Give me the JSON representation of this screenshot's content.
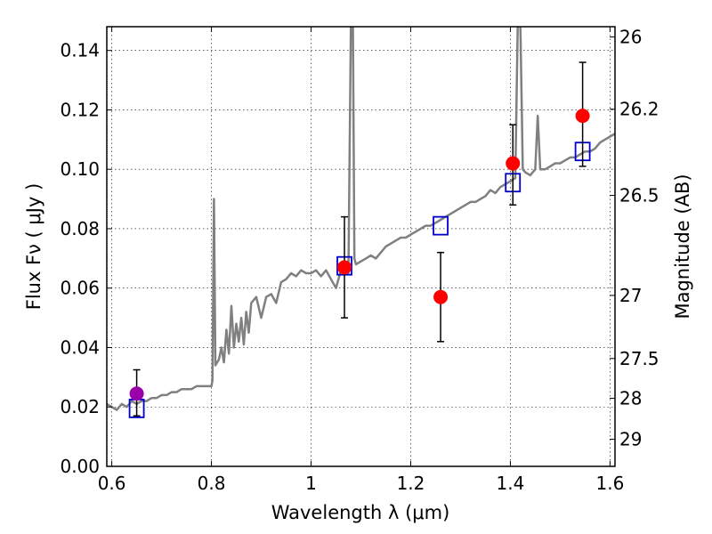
{
  "chart_data": {
    "type": "scatter",
    "title": "",
    "xlabel": "Wavelength  λ (μm)",
    "ylabel": "Flux  Fν  ( μJy )",
    "ylabel_right": "Magnitude (AB)",
    "xlim": [
      0.59,
      1.61
    ],
    "ylim": [
      0.0,
      0.148
    ],
    "grid": true,
    "x_ticks": [
      0.6,
      0.8,
      1.0,
      1.2,
      1.4,
      1.6
    ],
    "x_tick_labels": [
      "0.6",
      "0.8",
      "1",
      "1.2",
      "1.4",
      "1.6"
    ],
    "y_ticks": [
      0.0,
      0.02,
      0.04,
      0.06,
      0.08,
      0.1,
      0.12,
      0.14
    ],
    "y_tick_labels": [
      "0.00",
      "0.02",
      "0.04",
      "0.06",
      "0.08",
      "0.10",
      "0.12",
      "0.14"
    ],
    "right_ticks": [
      {
        "mag": 26,
        "label": "26"
      },
      {
        "mag": 26.2,
        "label": "26.2"
      },
      {
        "mag": 26.5,
        "label": "26.5"
      },
      {
        "mag": 27,
        "label": "27"
      },
      {
        "mag": 27.5,
        "label": "27.5"
      },
      {
        "mag": 28,
        "label": "28"
      },
      {
        "mag": 29,
        "label": "29"
      }
    ],
    "series": [
      {
        "kind": "line",
        "color": "#808080",
        "points": [
          [
            0.59,
            0.021
          ],
          [
            0.6,
            0.02
          ],
          [
            0.61,
            0.019
          ],
          [
            0.62,
            0.021
          ],
          [
            0.63,
            0.02
          ],
          [
            0.64,
            0.022
          ],
          [
            0.65,
            0.021
          ],
          [
            0.66,
            0.022
          ],
          [
            0.67,
            0.022
          ],
          [
            0.68,
            0.023
          ],
          [
            0.69,
            0.023
          ],
          [
            0.7,
            0.024
          ],
          [
            0.71,
            0.024
          ],
          [
            0.72,
            0.025
          ],
          [
            0.73,
            0.025
          ],
          [
            0.74,
            0.026
          ],
          [
            0.75,
            0.026
          ],
          [
            0.76,
            0.026
          ],
          [
            0.77,
            0.027
          ],
          [
            0.78,
            0.027
          ],
          [
            0.79,
            0.027
          ],
          [
            0.8,
            0.027
          ],
          [
            0.802,
            0.029
          ],
          [
            0.805,
            0.09
          ],
          [
            0.808,
            0.034
          ],
          [
            0.815,
            0.036
          ],
          [
            0.82,
            0.04
          ],
          [
            0.825,
            0.035
          ],
          [
            0.83,
            0.046
          ],
          [
            0.835,
            0.038
          ],
          [
            0.84,
            0.054
          ],
          [
            0.845,
            0.04
          ],
          [
            0.85,
            0.048
          ],
          [
            0.855,
            0.042
          ],
          [
            0.86,
            0.05
          ],
          [
            0.865,
            0.041
          ],
          [
            0.87,
            0.052
          ],
          [
            0.875,
            0.045
          ],
          [
            0.88,
            0.055
          ],
          [
            0.89,
            0.057
          ],
          [
            0.9,
            0.05
          ],
          [
            0.91,
            0.057
          ],
          [
            0.92,
            0.058
          ],
          [
            0.93,
            0.055
          ],
          [
            0.94,
            0.062
          ],
          [
            0.95,
            0.063
          ],
          [
            0.96,
            0.065
          ],
          [
            0.97,
            0.064
          ],
          [
            0.98,
            0.066
          ],
          [
            0.99,
            0.065
          ],
          [
            1.0,
            0.065
          ],
          [
            1.01,
            0.066
          ],
          [
            1.02,
            0.064
          ],
          [
            1.03,
            0.066
          ],
          [
            1.04,
            0.063
          ],
          [
            1.05,
            0.06
          ],
          [
            1.06,
            0.066
          ],
          [
            1.07,
            0.067
          ],
          [
            1.075,
            0.065
          ],
          [
            1.08,
            0.15
          ],
          [
            1.084,
            0.15
          ],
          [
            1.087,
            0.07
          ],
          [
            1.09,
            0.068
          ],
          [
            1.1,
            0.069
          ],
          [
            1.11,
            0.07
          ],
          [
            1.12,
            0.071
          ],
          [
            1.13,
            0.07
          ],
          [
            1.14,
            0.072
          ],
          [
            1.15,
            0.074
          ],
          [
            1.16,
            0.075
          ],
          [
            1.17,
            0.076
          ],
          [
            1.18,
            0.077
          ],
          [
            1.19,
            0.077
          ],
          [
            1.2,
            0.078
          ],
          [
            1.21,
            0.079
          ],
          [
            1.22,
            0.08
          ],
          [
            1.23,
            0.081
          ],
          [
            1.24,
            0.081
          ],
          [
            1.25,
            0.082
          ],
          [
            1.26,
            0.083
          ],
          [
            1.27,
            0.084
          ],
          [
            1.28,
            0.085
          ],
          [
            1.29,
            0.086
          ],
          [
            1.3,
            0.087
          ],
          [
            1.31,
            0.088
          ],
          [
            1.32,
            0.089
          ],
          [
            1.33,
            0.089
          ],
          [
            1.34,
            0.09
          ],
          [
            1.35,
            0.091
          ],
          [
            1.36,
            0.093
          ],
          [
            1.37,
            0.092
          ],
          [
            1.38,
            0.094
          ],
          [
            1.39,
            0.095
          ],
          [
            1.4,
            0.096
          ],
          [
            1.41,
            0.097
          ],
          [
            1.415,
            0.15
          ],
          [
            1.42,
            0.15
          ],
          [
            1.425,
            0.1
          ],
          [
            1.43,
            0.099
          ],
          [
            1.44,
            0.098
          ],
          [
            1.45,
            0.1
          ],
          [
            1.455,
            0.118
          ],
          [
            1.46,
            0.1
          ],
          [
            1.47,
            0.1
          ],
          [
            1.48,
            0.101
          ],
          [
            1.49,
            0.102
          ],
          [
            1.5,
            0.102
          ],
          [
            1.51,
            0.103
          ],
          [
            1.52,
            0.104
          ],
          [
            1.53,
            0.104
          ],
          [
            1.54,
            0.105
          ],
          [
            1.55,
            0.106
          ],
          [
            1.56,
            0.106
          ],
          [
            1.57,
            0.107
          ],
          [
            1.58,
            0.109
          ],
          [
            1.59,
            0.11
          ],
          [
            1.6,
            0.111
          ],
          [
            1.61,
            0.112
          ]
        ]
      },
      {
        "kind": "points",
        "marker": "square",
        "color": "#0000cc",
        "points": [
          [
            0.65,
            0.0195
          ],
          [
            1.067,
            0.0675
          ],
          [
            1.26,
            0.081
          ],
          [
            1.405,
            0.0955
          ],
          [
            1.545,
            0.106
          ]
        ]
      },
      {
        "kind": "points",
        "marker": "circle",
        "color": "#ff0000",
        "points": [
          {
            "x": 1.067,
            "y": 0.067,
            "err_low": 0.05,
            "err_high": 0.084
          },
          {
            "x": 1.26,
            "y": 0.057,
            "err_low": 0.042,
            "err_high": 0.072
          },
          {
            "x": 1.405,
            "y": 0.102,
            "err_low": 0.088,
            "err_high": 0.115
          },
          {
            "x": 1.545,
            "y": 0.118,
            "err_low": 0.101,
            "err_high": 0.136
          }
        ]
      },
      {
        "kind": "points",
        "marker": "circle",
        "color": "#9900aa",
        "points": [
          {
            "x": 0.65,
            "y": 0.0245,
            "err_low": 0.017,
            "err_high": 0.0325
          }
        ]
      }
    ]
  }
}
